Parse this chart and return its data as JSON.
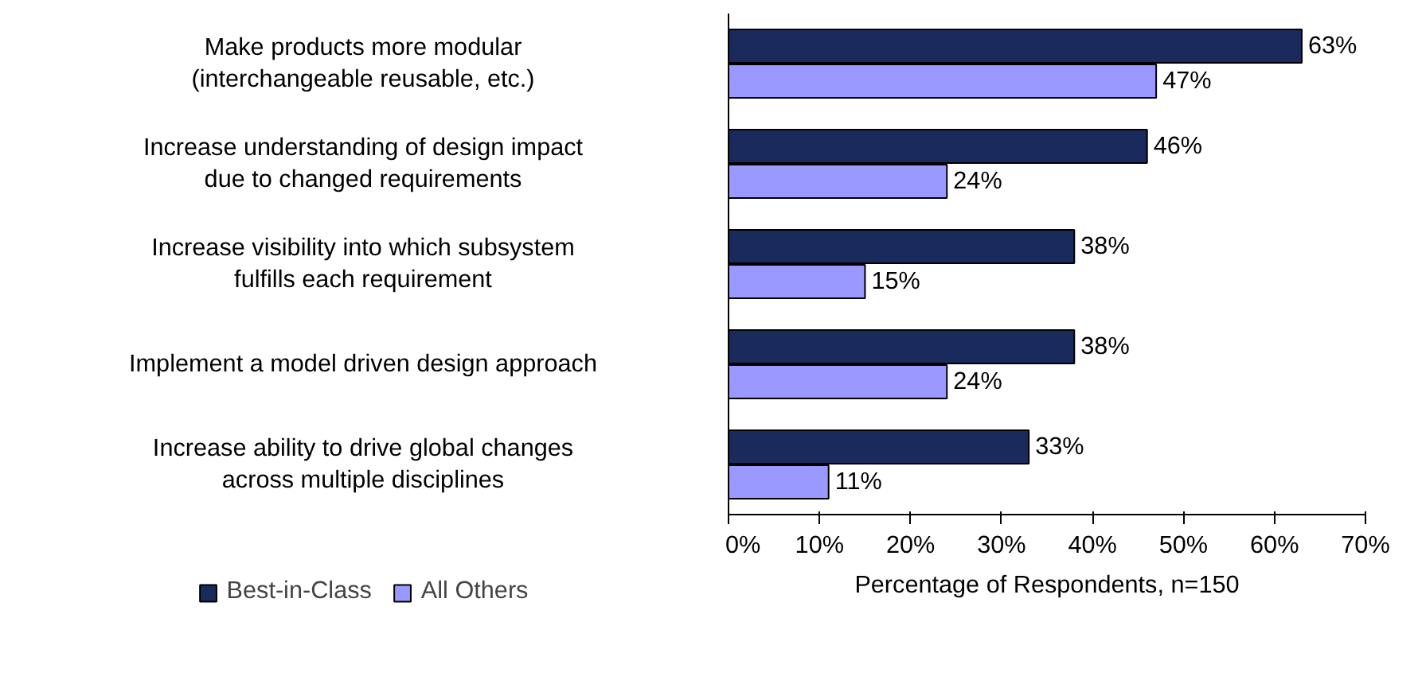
{
  "chart_data": {
    "type": "bar",
    "orientation": "horizontal",
    "xlabel": "Percentage of Respondents, n=150",
    "categories": [
      "Make products more modular (interchangeable reusable, etc.)",
      "Increase understanding of design impact due to changed requirements",
      "Increase visibility into which subsystem fulfills each requirement",
      "Implement a model driven design approach",
      "Increase ability to drive global changes across multiple disciplines"
    ],
    "series": [
      {
        "name": "Best-in-Class",
        "color": "#1b2a5c",
        "values": [
          63,
          46,
          38,
          38,
          33
        ],
        "value_labels": [
          "63%",
          "46%",
          "38%",
          "38%",
          "33%"
        ]
      },
      {
        "name": "All Others",
        "color": "#9999ff",
        "values": [
          47,
          24,
          15,
          24,
          11
        ],
        "value_labels": [
          "47%",
          "24%",
          "15%",
          "24%",
          "11%"
        ]
      }
    ],
    "xlim": [
      0,
      70
    ],
    "xticks": [
      {
        "value": 0,
        "label": "0%"
      },
      {
        "value": 10,
        "label": "10%"
      },
      {
        "value": 20,
        "label": "20%"
      },
      {
        "value": 30,
        "label": "30%"
      },
      {
        "value": 40,
        "label": "40%"
      },
      {
        "value": 50,
        "label": "50%"
      },
      {
        "value": 60,
        "label": "60%"
      },
      {
        "value": 70,
        "label": "70%"
      }
    ],
    "grid": false,
    "legend": "bottom"
  }
}
